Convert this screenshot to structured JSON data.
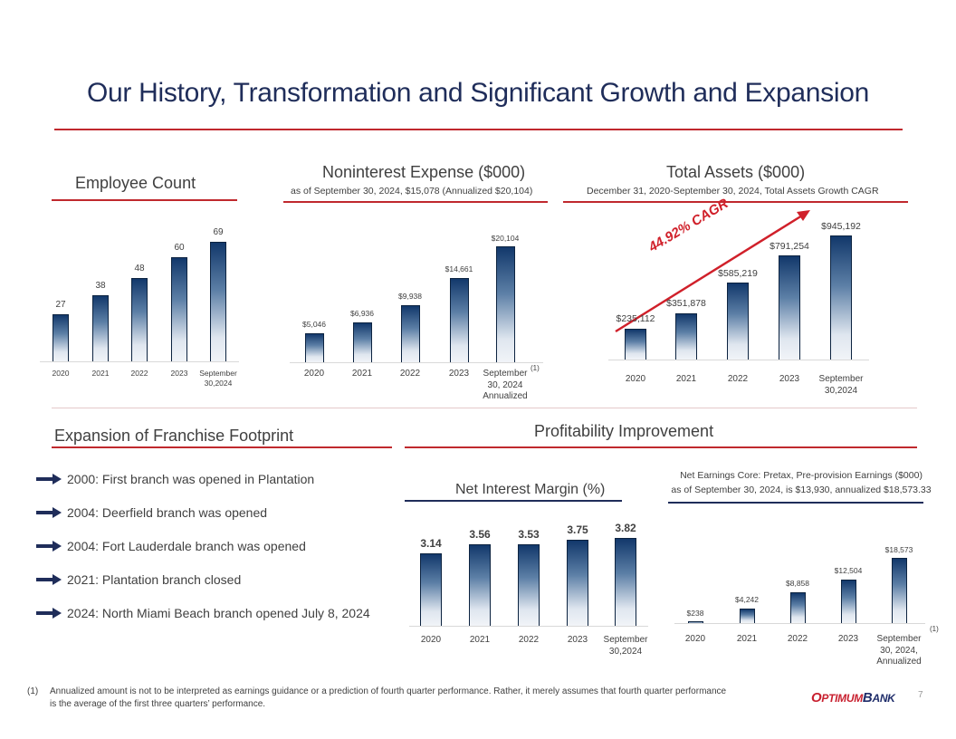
{
  "title": "Our History, Transformation and Significant Growth and Expansion",
  "employee": {
    "heading": "Employee Count"
  },
  "nonint": {
    "heading": "Noninterest Expense ($000)",
    "subtitle": "as of September 30, 2024, $15,078 (Annualized $20,104)",
    "footnote_ref": "(1)"
  },
  "assets": {
    "heading": "Total Assets ($000)",
    "subtitle": "December 31, 2020-September 30, 2024, Total Assets Growth CAGR",
    "cagr": "44.92% CAGR"
  },
  "expansion": {
    "heading": "Expansion of Franchise Footprint",
    "items": [
      {
        "text": "2000: First branch was opened in Plantation"
      },
      {
        "text": "2004: Deerfield branch was opened"
      },
      {
        "text": "2004: Fort Lauderdale branch was opened"
      },
      {
        "text": "2021: Plantation branch closed"
      },
      {
        "text": "2024: North Miami Beach branch opened July 8, 2024"
      }
    ]
  },
  "profitability": {
    "heading": "Profitability Improvement"
  },
  "nim": {
    "heading": "Net Interest Margin (%)"
  },
  "earnings": {
    "heading1": "Net Earnings Core: Pretax, Pre-provision Earnings ($000)",
    "heading2": "as of September 30, 2024, is $13,930, annualized $18,573.33",
    "footnote_ref": "(1)"
  },
  "footnote": {
    "marker": "(1)",
    "line1": "Annualized amount is not to be interpreted as earnings guidance or a prediction of fourth quarter performance. Rather, it merely assumes that fourth quarter performance",
    "line2": "is the average of the first three quarters’ performance."
  },
  "logo": "OPTIMUMBANK",
  "page_number": "7",
  "colors": {
    "accent_red": "#c0292e",
    "navy": "#1f2d5a",
    "bar_top": "#12386b"
  },
  "chart_data": [
    {
      "id": "employee",
      "type": "bar",
      "title": "Employee Count",
      "categories": [
        "2020",
        "2021",
        "2022",
        "2023",
        "September\n30,2024"
      ],
      "values": [
        27,
        38,
        48,
        60,
        69
      ],
      "labels": [
        "27",
        "38",
        "48",
        "60",
        "69"
      ]
    },
    {
      "id": "nonint",
      "type": "bar",
      "title": "Noninterest Expense ($000)",
      "categories": [
        "2020",
        "2021",
        "2022",
        "2023",
        "September\n30, 2024\nAnnualized"
      ],
      "values": [
        5046,
        6936,
        9938,
        14661,
        20104
      ],
      "labels": [
        "$5,046",
        "$6,936",
        "$9,938",
        "$14,661",
        "$20,104"
      ]
    },
    {
      "id": "assets",
      "type": "bar",
      "title": "Total Assets ($000)",
      "categories": [
        "2020",
        "2021",
        "2022",
        "2023",
        "September\n30,2024"
      ],
      "values": [
        235112,
        351878,
        585219,
        791254,
        945192
      ],
      "labels": [
        "$235,112",
        "$351,878",
        "$585,219",
        "$791,254",
        "$945,192"
      ]
    },
    {
      "id": "nim",
      "type": "bar",
      "title": "Net Interest Margin (%)",
      "categories": [
        "2020",
        "2021",
        "2022",
        "2023",
        "September\n30,2024"
      ],
      "values": [
        3.14,
        3.56,
        3.53,
        3.75,
        3.82
      ],
      "labels": [
        "3.14",
        "3.56",
        "3.53",
        "3.75",
        "3.82"
      ]
    },
    {
      "id": "earnings",
      "type": "bar",
      "title": "Net Earnings Core: Pretax, Pre-provision Earnings ($000)",
      "categories": [
        "2020",
        "2021",
        "2022",
        "2023",
        "September\n30, 2024,\nAnnualized"
      ],
      "values": [
        238,
        4242,
        8858,
        12504,
        18573
      ],
      "labels": [
        "$238",
        "$4,242",
        "$8,858",
        "$12,504",
        "$18,573"
      ]
    }
  ]
}
